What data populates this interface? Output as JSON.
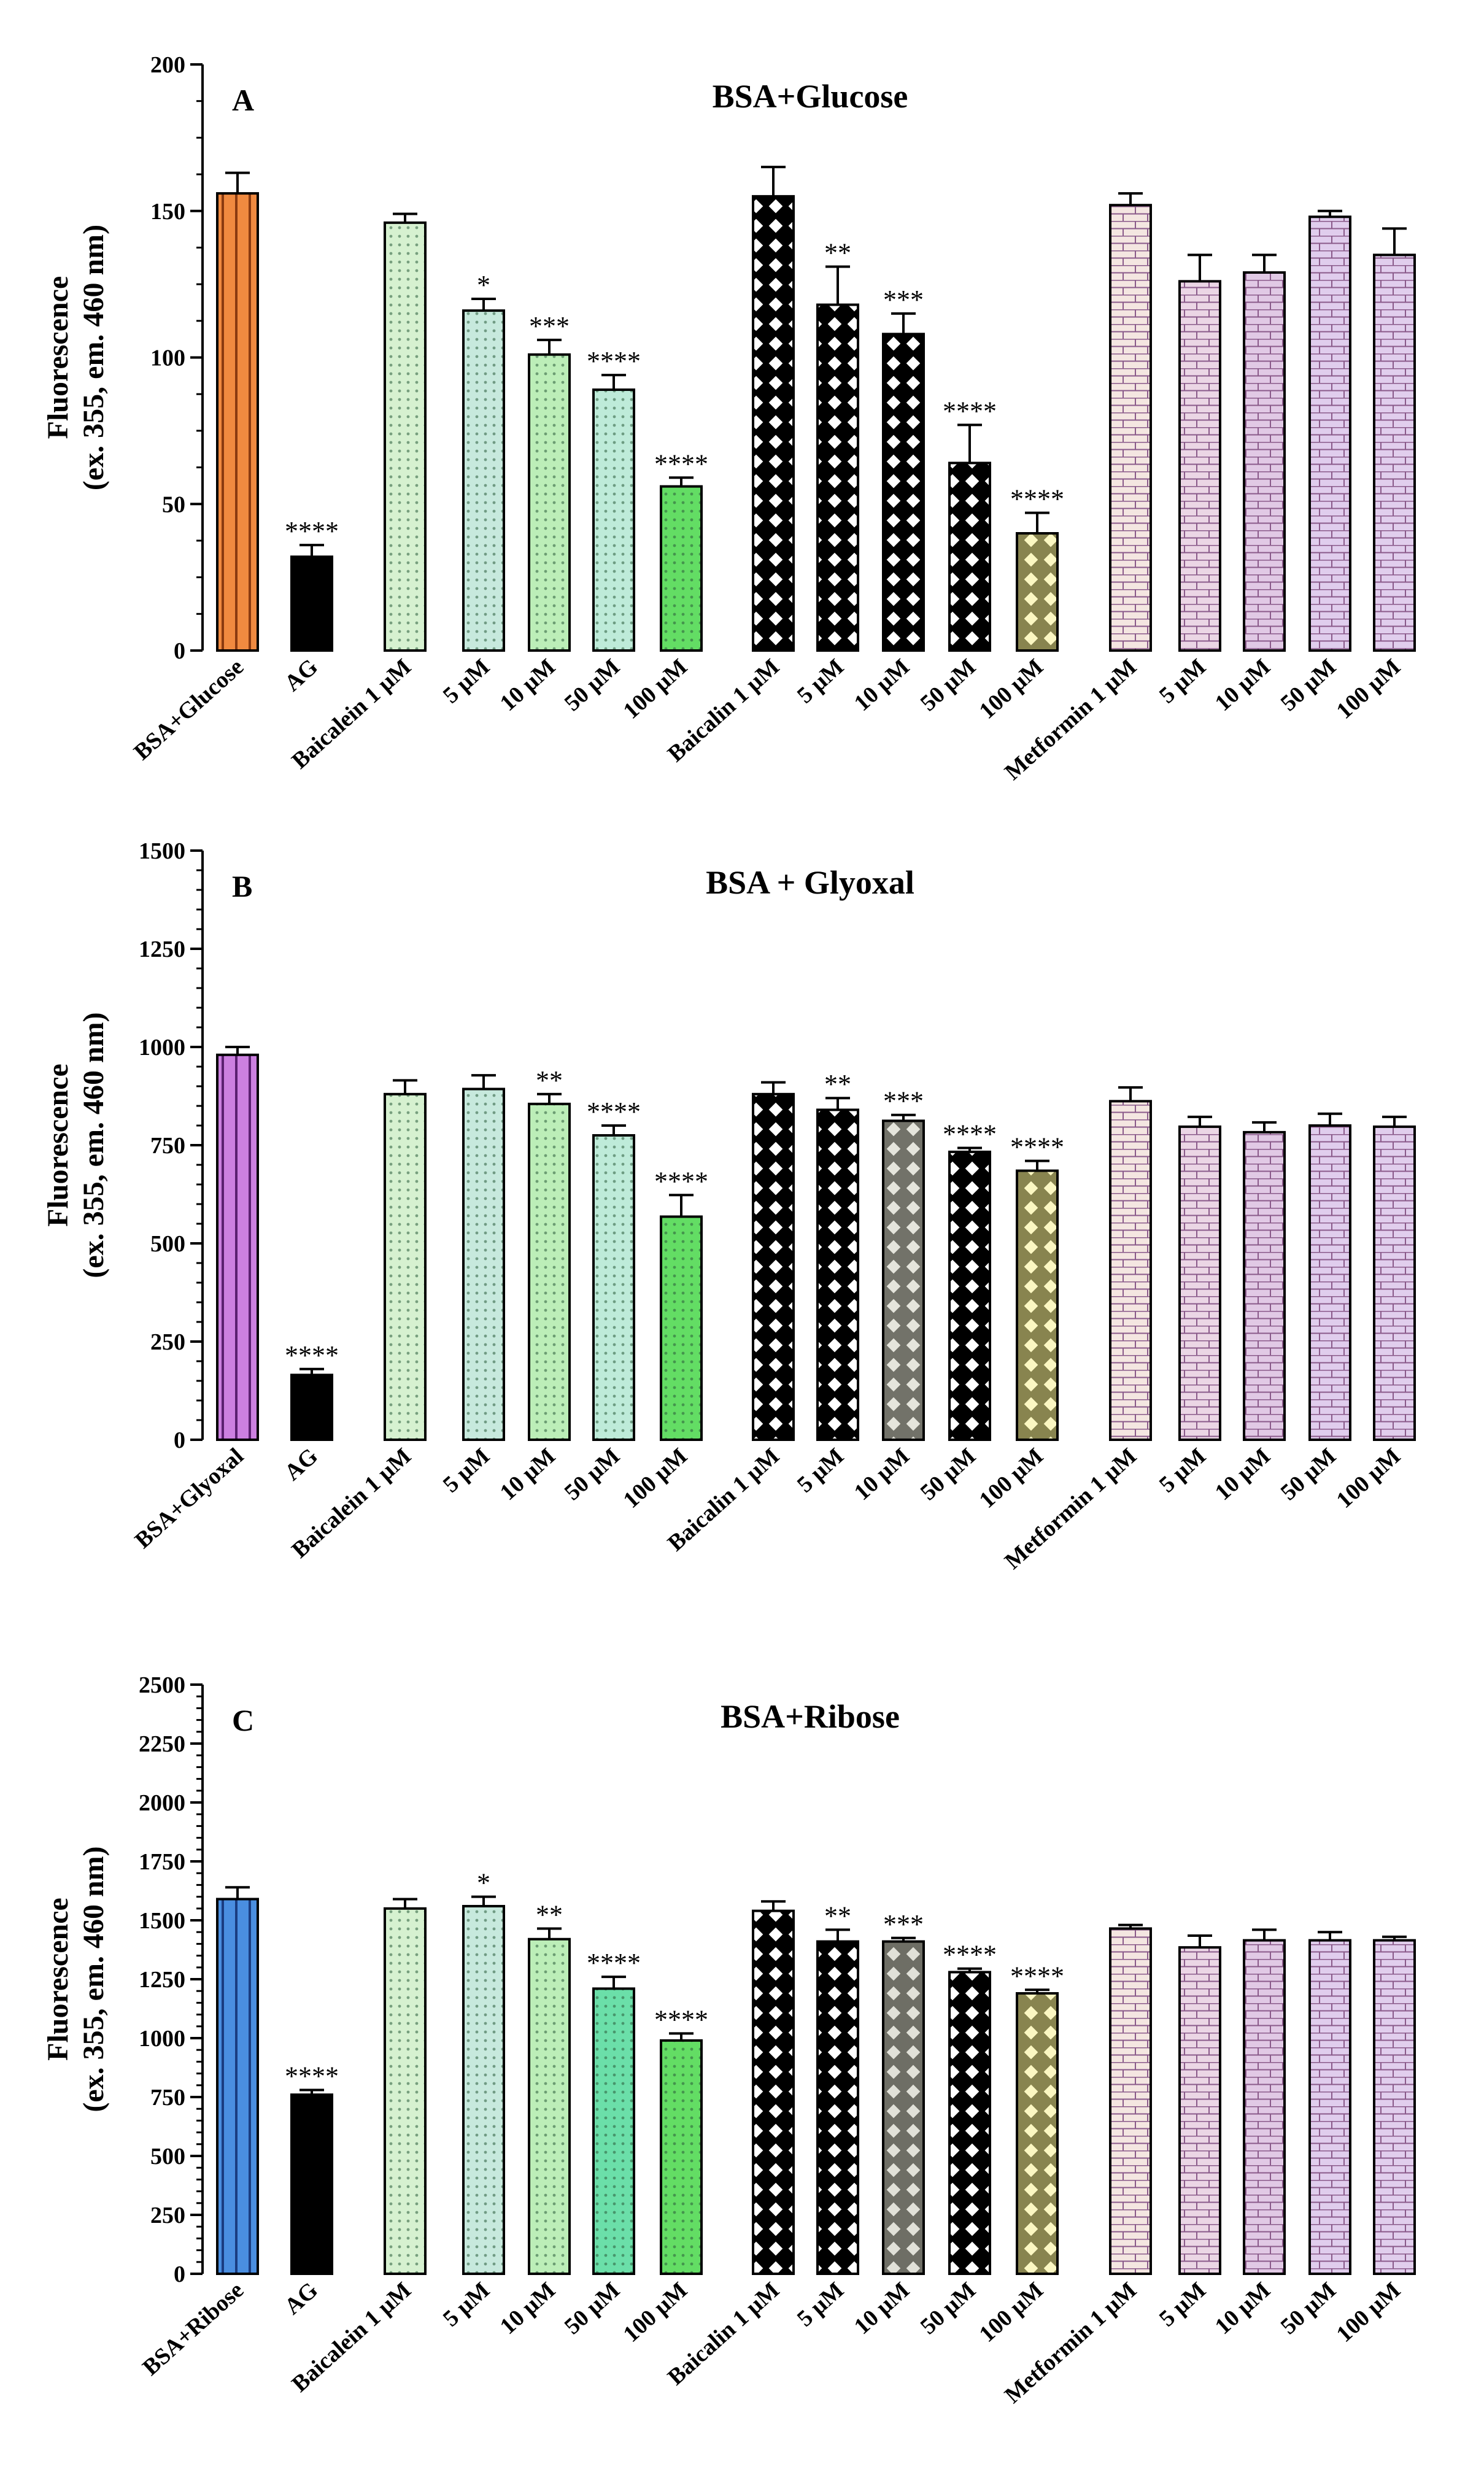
{
  "chart_data": [
    {
      "type": "bar",
      "panel": "A",
      "title": "BSA+Glucose",
      "ylabel": "Fluorescence\n(ex. 355, em. 460 nm)",
      "xlabel": "",
      "ylim": [
        0,
        200
      ],
      "yticks": [
        0,
        50,
        100,
        150,
        200
      ],
      "categories": [
        "BSA+Glucose",
        "AG",
        "Baicalein 1 µM",
        "5 µM",
        "10 µM",
        "50 µM",
        "100 µM",
        "Baicalin 1 µM",
        "5 µM",
        "10 µM",
        "50 µM",
        "100 µM",
        "Metformin 1 µM",
        "5 µM",
        "10 µM",
        "50 µM",
        "100 µM"
      ],
      "values": [
        156,
        32,
        146,
        116,
        101,
        89,
        56,
        155,
        118,
        108,
        64,
        40,
        152,
        126,
        129,
        148,
        135
      ],
      "errors": [
        7,
        4,
        3,
        4,
        5,
        5,
        3,
        10,
        13,
        7,
        13,
        7,
        4,
        9,
        6,
        2,
        9
      ],
      "significance": [
        "",
        "****",
        "",
        "*",
        "***",
        "****",
        "****",
        "",
        "**",
        "***",
        "****",
        "****",
        "",
        "",
        "",
        "",
        ""
      ],
      "colors": [
        "#f0843c",
        "#000000",
        "#c8ecc0",
        "#b4e2d2",
        "#a6e8a0",
        "#a8e4cc",
        "#2fd130",
        "#ffffff",
        "#ffffff",
        "#ffffff",
        "#ffffff",
        "#f8f090",
        "#f2e2dc",
        "#e8cfe0",
        "#dcbfe0",
        "#dbc4ea",
        "#dcc6ea"
      ],
      "grid": false,
      "legend": "none"
    },
    {
      "type": "bar",
      "panel": "B",
      "title": "BSA + Glyoxal",
      "ylabel": "Fluorescence\n(ex. 355, em. 460 nm)",
      "xlabel": "",
      "ylim": [
        0,
        1500
      ],
      "yticks": [
        0,
        250,
        500,
        750,
        1000,
        1250,
        1500
      ],
      "categories": [
        "BSA+Glyoxal",
        "AG",
        "Baicalein 1 µM",
        "5 µM",
        "10 µM",
        "50 µM",
        "100 µM",
        "Baicalin 1  µM",
        "5 µM",
        "10 µM",
        "50 µM",
        "100 µM",
        "Metformin 1 µM",
        "5 µM",
        "10 µM",
        "50 µM",
        "100 µM"
      ],
      "values": [
        980,
        165,
        880,
        893,
        855,
        775,
        568,
        880,
        840,
        812,
        733,
        685,
        862,
        797,
        783,
        800,
        797
      ],
      "errors": [
        20,
        15,
        35,
        35,
        25,
        25,
        55,
        30,
        30,
        15,
        10,
        25,
        35,
        25,
        25,
        30,
        25
      ],
      "significance": [
        "",
        "****",
        "",
        "",
        "**",
        "****",
        "****",
        "",
        "**",
        "***",
        "****",
        "****",
        "",
        "",
        "",
        "",
        ""
      ],
      "colors": [
        "#cc80e0",
        "#000000",
        "#c8ecc0",
        "#b4e2d2",
        "#a6e8a0",
        "#a8e4cc",
        "#2fd130",
        "#ffffff",
        "#ffffff",
        "#d0d0c0",
        "#ffffff",
        "#f8f090",
        "#f2e2dc",
        "#e8cfe0",
        "#dcbfe0",
        "#dbc4ea",
        "#dcc6ea"
      ],
      "grid": false,
      "legend": "none"
    },
    {
      "type": "bar",
      "panel": "C",
      "title": "BSA+Ribose",
      "ylabel": "Fluorescence\n(ex. 355, em. 460 nm)",
      "xlabel": "",
      "ylim": [
        0,
        2500
      ],
      "yticks": [
        0,
        250,
        500,
        750,
        1000,
        1250,
        1500,
        1750,
        2000,
        2250,
        2500
      ],
      "categories": [
        "BSA+Ribose",
        "AG",
        "Baicalein 1 µM",
        "5 µM",
        "10 µM",
        "50 µM",
        "100 µM",
        "Baicalin 1 µM",
        "5 µM",
        "10 µM",
        "50 µM",
        "100 µM",
        "Metformin 1 µM",
        "5 µM",
        "10 µM",
        "50 µM",
        "100 µM"
      ],
      "values": [
        1590,
        760,
        1550,
        1560,
        1420,
        1210,
        990,
        1540,
        1410,
        1410,
        1280,
        1190,
        1465,
        1385,
        1415,
        1415,
        1415
      ],
      "errors": [
        50,
        20,
        40,
        40,
        45,
        50,
        30,
        40,
        50,
        15,
        15,
        15,
        15,
        50,
        45,
        35,
        15
      ],
      "significance": [
        "",
        "****",
        "",
        "*",
        "**",
        "****",
        "****",
        "",
        "**",
        "***",
        "****",
        "****",
        "",
        "",
        "",
        "",
        ""
      ],
      "colors": [
        "#4a8ee0",
        "#000000",
        "#c8ecc0",
        "#b4e2d2",
        "#a6e8a0",
        "#3ad48c",
        "#2fd130",
        "#ffffff",
        "#ffffff",
        "#c8c8b8",
        "#ffffff",
        "#f8f090",
        "#f2e2dc",
        "#e8cfe0",
        "#dcbfe0",
        "#dbc4ea",
        "#dcc6ea"
      ],
      "grid": false,
      "legend": "none"
    }
  ]
}
